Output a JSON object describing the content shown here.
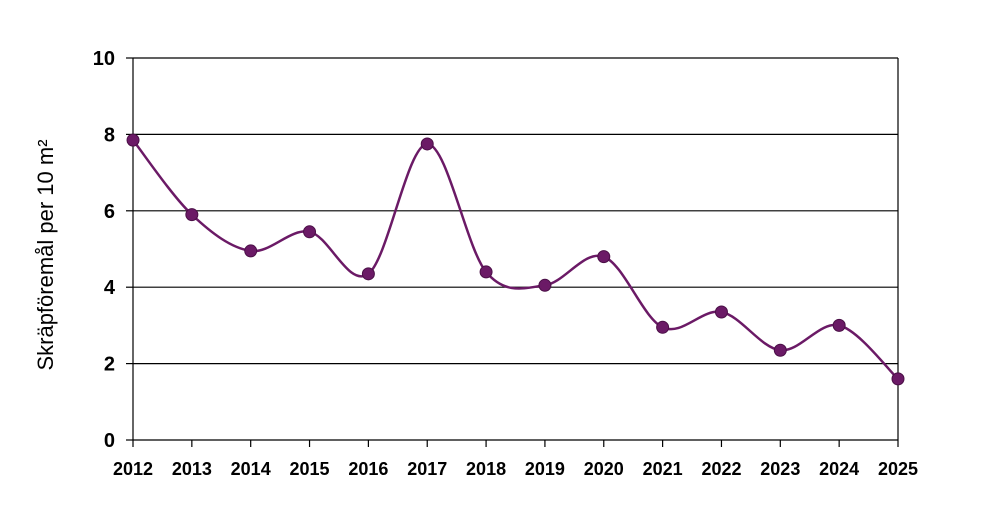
{
  "chart_data": {
    "type": "line",
    "title": "",
    "xlabel": "",
    "ylabel": "Skräpföremål per 10 m²",
    "x": [
      "2012",
      "2013",
      "2014",
      "2015",
      "2016",
      "2017",
      "2018",
      "2019",
      "2020",
      "2021",
      "2022",
      "2023",
      "2024",
      "2025"
    ],
    "series": [
      {
        "values": [
          7.85,
          5.9,
          4.95,
          5.45,
          4.35,
          7.75,
          4.4,
          4.05,
          4.8,
          2.95,
          3.35,
          2.35,
          3.0,
          1.6
        ],
        "color": "#6b1a66"
      }
    ],
    "ylim": [
      0,
      10
    ],
    "yticks": [
      "0",
      "2",
      "4",
      "6",
      "8",
      "10"
    ],
    "grid": true,
    "legend": "none",
    "smooth": true
  }
}
